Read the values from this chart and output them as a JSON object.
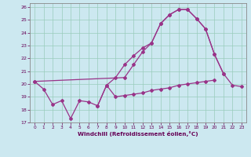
{
  "xlabel": "Windchill (Refroidissement éolien,°C)",
  "bg_color": "#cce8f0",
  "grid_color": "#99ccbb",
  "line_color": "#993388",
  "xlim": [
    -0.5,
    23.5
  ],
  "ylim": [
    17,
    26.3
  ],
  "xticks": [
    0,
    1,
    2,
    3,
    4,
    5,
    6,
    7,
    8,
    9,
    10,
    11,
    12,
    13,
    14,
    15,
    16,
    17,
    18,
    19,
    20,
    21,
    22,
    23
  ],
  "yticks": [
    17,
    18,
    19,
    20,
    21,
    22,
    23,
    24,
    25,
    26
  ],
  "series1_x": [
    0,
    1,
    2,
    3,
    4,
    5,
    6,
    7,
    8,
    9,
    10,
    11,
    12,
    13,
    14,
    15,
    16,
    17,
    18,
    19,
    20
  ],
  "series1_y": [
    20.2,
    19.6,
    18.4,
    18.7,
    17.3,
    18.7,
    18.6,
    18.3,
    19.9,
    19.0,
    19.1,
    19.2,
    19.3,
    19.5,
    19.6,
    19.7,
    19.9,
    20.0,
    20.1,
    20.2,
    20.3
  ],
  "series2_x": [
    7,
    8,
    9,
    10,
    11,
    12,
    13,
    14,
    15,
    16,
    17,
    18,
    19,
    20,
    21
  ],
  "series2_y": [
    18.3,
    19.9,
    20.5,
    21.5,
    22.2,
    22.8,
    23.2,
    24.7,
    25.4,
    25.8,
    25.8,
    25.1,
    24.3,
    22.3,
    20.8
  ],
  "series3_x": [
    0,
    10,
    11,
    12,
    13,
    14,
    15,
    16,
    17,
    18,
    19,
    20,
    21,
    22,
    23
  ],
  "series3_y": [
    20.2,
    20.5,
    21.5,
    22.5,
    23.2,
    24.7,
    25.4,
    25.8,
    25.8,
    25.1,
    24.3,
    22.3,
    20.8,
    19.9,
    19.8
  ]
}
